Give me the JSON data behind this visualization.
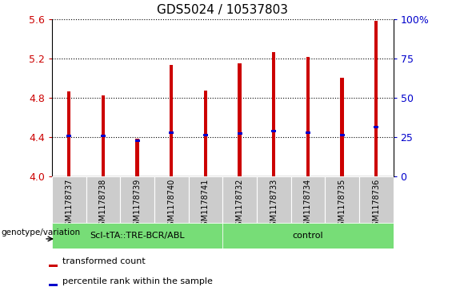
{
  "title": "GDS5024 / 10537803",
  "samples": [
    "GSM1178737",
    "GSM1178738",
    "GSM1178739",
    "GSM1178740",
    "GSM1178741",
    "GSM1178732",
    "GSM1178733",
    "GSM1178734",
    "GSM1178735",
    "GSM1178736"
  ],
  "red_values": [
    4.86,
    4.82,
    4.38,
    5.13,
    4.87,
    5.15,
    5.26,
    5.21,
    5.0,
    5.58
  ],
  "blue_values": [
    4.41,
    4.41,
    4.36,
    4.44,
    4.42,
    4.43,
    4.46,
    4.44,
    4.42,
    4.5
  ],
  "ylim_left": [
    4.0,
    5.6
  ],
  "ylim_right": [
    0,
    100
  ],
  "yticks_left": [
    4.0,
    4.4,
    4.8,
    5.2,
    5.6
  ],
  "yticks_right": [
    0,
    25,
    50,
    75,
    100
  ],
  "ytick_labels_right": [
    "0",
    "25",
    "50",
    "75",
    "100%"
  ],
  "bar_width": 0.1,
  "bar_color": "#cc0000",
  "dot_color": "#0000cc",
  "background_xlabel": "#cccccc",
  "group_color": "#77dd77",
  "group1_label": "ScI-tTA::TRE-BCR/ABL",
  "group2_label": "control",
  "group1_indices": [
    0,
    1,
    2,
    3,
    4
  ],
  "group2_indices": [
    5,
    6,
    7,
    8,
    9
  ],
  "genotype_label": "genotype/variation",
  "legend_red": "transformed count",
  "legend_blue": "percentile rank within the sample",
  "title_fontsize": 11,
  "axis_color_left": "#cc0000",
  "axis_color_right": "#0000cc"
}
